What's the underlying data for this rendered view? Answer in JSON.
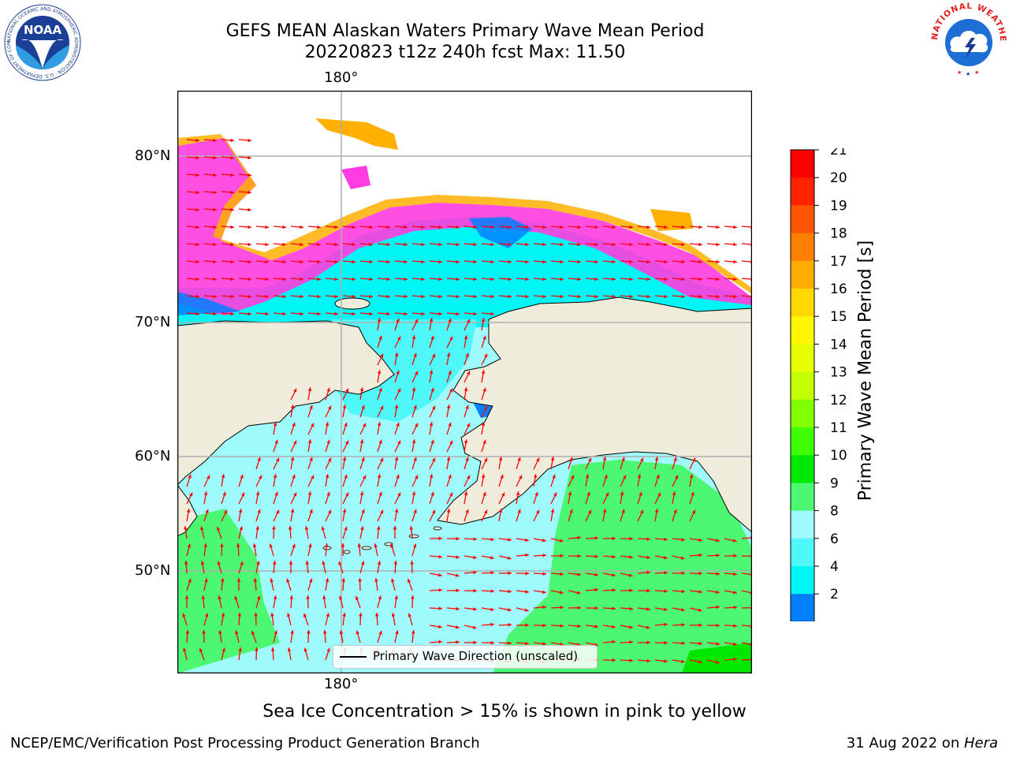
{
  "title": {
    "line1": "GEFS MEAN Alaskan Waters Primary Wave Mean Period",
    "line2": "20220823 t12z 240h fcst   Max: 11.50"
  },
  "logos": {
    "left": {
      "text": "NOAA",
      "ring_text": "NATIONAL OCEANIC AND ATMOSPHERIC ADMINISTRATION · U.S. DEPARTMENT OF COMMERCE",
      "icon": "noaa-logo"
    },
    "right": {
      "ring_text": "NATIONAL WEATHER SERVICE",
      "icon": "nws-logo"
    }
  },
  "map": {
    "lon_labels": {
      "top": "180°",
      "bottom": "180°"
    },
    "lat_labels": [
      "80°N",
      "70°N",
      "60°N",
      "50°N"
    ],
    "colors": {
      "land": "#efecdc",
      "ocean_low": "#9ffbfb",
      "ocean_mid": "#00f5f5",
      "ocean_high": "#4cf872",
      "arrow": "#ff0000",
      "ice": "#ff3ce0",
      "grid": "#b0b0b0"
    }
  },
  "legend": {
    "label": "Primary Wave Direction (unscaled)"
  },
  "colorbar": {
    "label": "Primary Wave Mean Period [s]",
    "ticks": [
      "21",
      "20",
      "19",
      "18",
      "17",
      "16",
      "15",
      "14",
      "13",
      "12",
      "11",
      "10",
      "9",
      "8",
      "6",
      "4",
      "2"
    ],
    "colors": [
      "#ff0000",
      "#ff2300",
      "#ff5500",
      "#ff8000",
      "#ffab00",
      "#ffd800",
      "#fff700",
      "#e8ff00",
      "#c3ff00",
      "#82ff00",
      "#3eff00",
      "#00e800",
      "#4cf872",
      "#9ffbfb",
      "#4ef8f8",
      "#00f5f5",
      "#0080ff"
    ],
    "extend_color": "#0000ff"
  },
  "caption": "Sea Ice Concentration > 15% is shown in pink to yellow",
  "footer": {
    "left": "NCEP/EMC/Verification Post Processing Product Generation Branch",
    "right_prefix": "31 Aug 2022 on ",
    "right_host": "Hera"
  }
}
